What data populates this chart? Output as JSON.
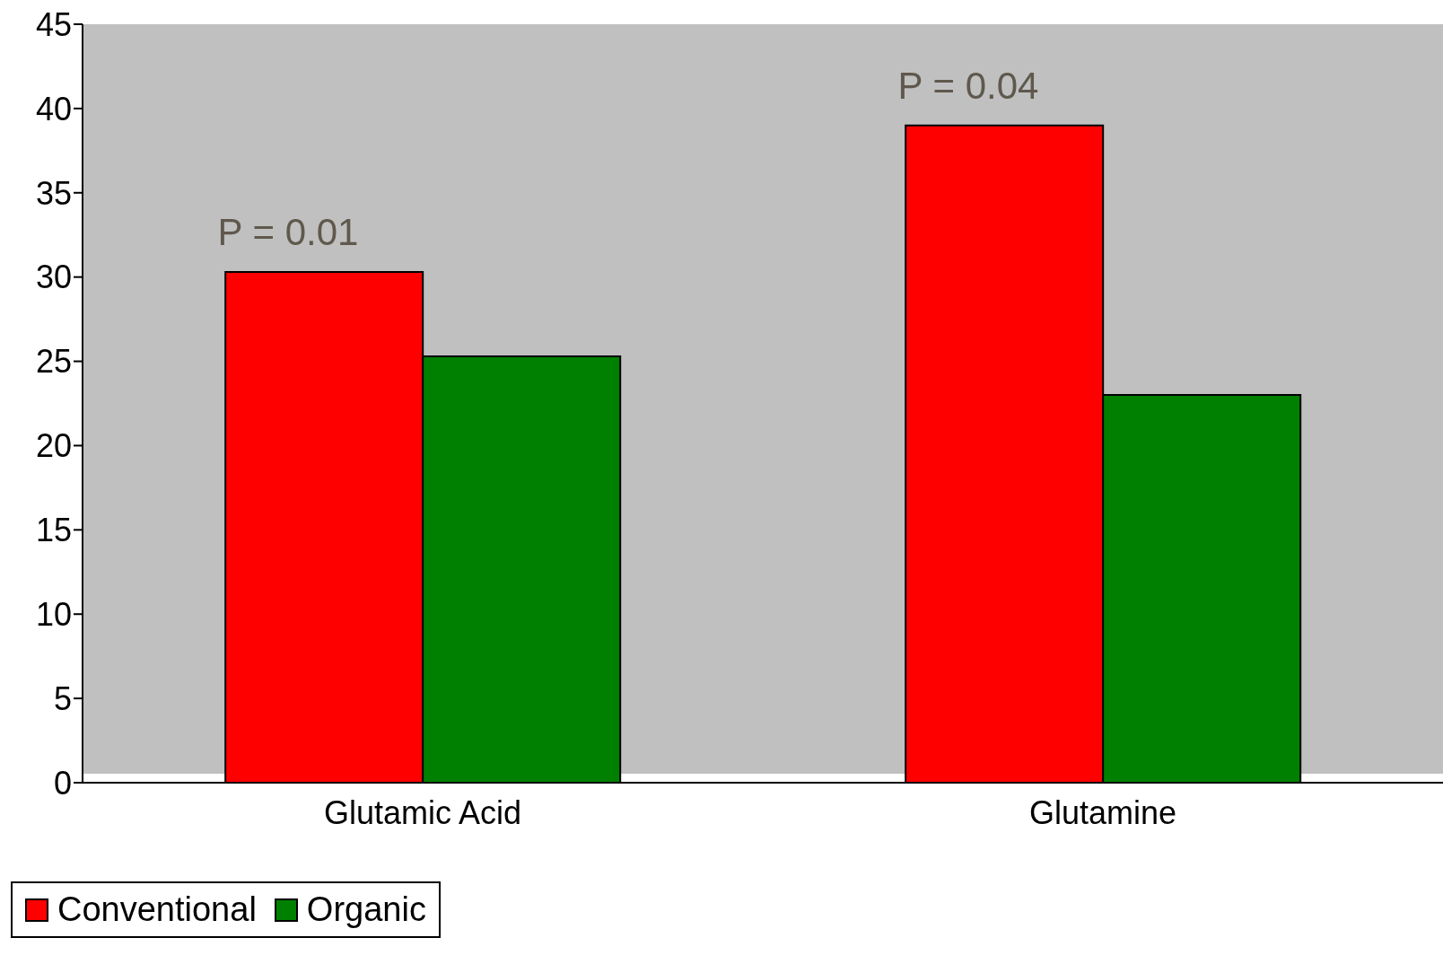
{
  "chart_data": {
    "type": "bar",
    "categories": [
      "Glutamic Acid",
      "Glutamine"
    ],
    "series": [
      {
        "name": "Conventional",
        "color": "#ff0000",
        "values": [
          30.3,
          39.0
        ]
      },
      {
        "name": "Organic",
        "color": "#008000",
        "values": [
          25.3,
          23.0
        ]
      }
    ],
    "ylim": [
      0,
      45
    ],
    "yticks": [
      0,
      5,
      10,
      15,
      20,
      25,
      30,
      35,
      40,
      45
    ],
    "grid": false,
    "legend": "bottom",
    "annotations": [
      {
        "text": "P = 0.01",
        "x": "Glutamic Acid",
        "y": 30.3
      },
      {
        "text": "P = 0.04",
        "x": "Glutamine",
        "y": 39.0
      }
    ]
  }
}
